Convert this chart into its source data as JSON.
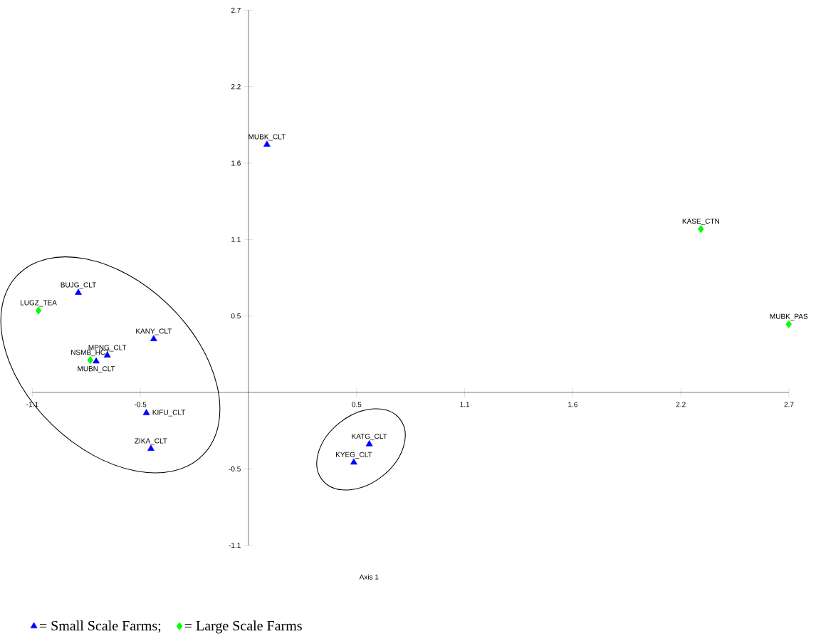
{
  "chart_data": {
    "type": "scatter",
    "xlabel": "Axis 1",
    "xlim": [
      -1.09,
      2.725
    ],
    "ylim": [
      -1.09,
      2.725
    ],
    "xticks": [
      {
        "value": -1.09,
        "label": "-1.1"
      },
      {
        "value": -0.545,
        "label": "-0.5"
      },
      {
        "value": 0.545,
        "label": "0.5"
      },
      {
        "value": 1.09,
        "label": "1.1"
      },
      {
        "value": 1.635,
        "label": "1.6"
      },
      {
        "value": 2.18,
        "label": "2.2"
      },
      {
        "value": 2.725,
        "label": "2.7"
      }
    ],
    "yticks": [
      {
        "value": -1.09,
        "label": "-1.1"
      },
      {
        "value": -0.545,
        "label": "-0.5"
      },
      {
        "value": 0.545,
        "label": "0.5"
      },
      {
        "value": 1.09,
        "label": "1.1"
      },
      {
        "value": 1.635,
        "label": "1.6"
      },
      {
        "value": 2.18,
        "label": "2.2"
      },
      {
        "value": 2.725,
        "label": "2.7"
      }
    ],
    "grid": false,
    "legend": "bottom",
    "series": [
      {
        "name": "= Small Scale Farms;",
        "color": "#0000ff",
        "marker": "triangle",
        "x": [
          0.093,
          -0.858,
          -0.478,
          -0.712,
          -0.768,
          -0.515,
          -0.492,
          0.609,
          0.531
        ],
        "values": [
          1.767,
          0.711,
          0.381,
          0.264,
          0.222,
          -0.147,
          -0.401,
          -0.369,
          -0.499
        ]
      },
      {
        "name": "= Large Scale Farms",
        "color": "#00ff00",
        "marker": "diamond",
        "x": [
          -1.059,
          -0.798,
          2.281,
          2.724
        ],
        "values": [
          0.584,
          0.23,
          1.165,
          0.486
        ]
      }
    ],
    "annotations": [
      {
        "text": "MUBK_CLT",
        "x": 0.093,
        "y": 1.767
      },
      {
        "text": "BUJG_CLT",
        "x": -0.858,
        "y": 0.711
      },
      {
        "text": "KANY_CLT",
        "x": -0.478,
        "y": 0.381
      },
      {
        "text": "MPNG_CLT",
        "x": -0.712,
        "y": 0.264
      },
      {
        "text": "MUBN_CLT",
        "x": -0.768,
        "y": 0.222
      },
      {
        "text": "KIFU_CLT",
        "x": -0.515,
        "y": -0.147
      },
      {
        "text": "ZIKA_CLT",
        "x": -0.492,
        "y": -0.401
      },
      {
        "text": "KATG_CLT",
        "x": 0.609,
        "y": -0.369
      },
      {
        "text": "KYEG_CLT",
        "x": 0.531,
        "y": -0.499
      },
      {
        "text": "LUGZ_TEA",
        "x": -1.059,
        "y": 0.584
      },
      {
        "text": "NSMB_HCT",
        "x": -0.798,
        "y": 0.23
      },
      {
        "text": "KASE_CTN",
        "x": 2.281,
        "y": 1.165
      },
      {
        "text": "MUBK_PAS",
        "x": 2.724,
        "y": 0.486
      }
    ]
  }
}
